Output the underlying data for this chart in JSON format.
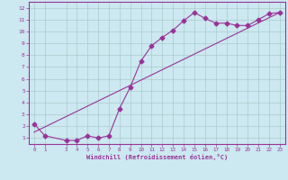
{
  "xlabel": "Windchill (Refroidissement éolien,°C)",
  "bg_color": "#cce8f0",
  "line_color": "#993399",
  "grid_color": "#aacccc",
  "series1_x": [
    0,
    1,
    3,
    4,
    5,
    6,
    7,
    8,
    9,
    10,
    11,
    12,
    13,
    14,
    15,
    16,
    17,
    18,
    19,
    20,
    21,
    22,
    23
  ],
  "series1_y": [
    2.2,
    1.2,
    0.8,
    0.8,
    1.2,
    1.0,
    1.2,
    3.5,
    5.3,
    7.5,
    8.8,
    9.5,
    10.1,
    10.9,
    11.6,
    11.1,
    10.7,
    10.7,
    10.5,
    10.5,
    11.0,
    11.5,
    11.6
  ],
  "series2_x": [
    0,
    23
  ],
  "series2_y": [
    1.5,
    11.6
  ],
  "xmin": -0.5,
  "xmax": 23.5,
  "ymin": 0.5,
  "ymax": 12.5,
  "xticks": [
    0,
    1,
    3,
    4,
    5,
    6,
    7,
    8,
    9,
    10,
    11,
    12,
    13,
    14,
    15,
    16,
    17,
    18,
    19,
    20,
    21,
    22,
    23
  ],
  "yticks": [
    1,
    2,
    3,
    4,
    5,
    6,
    7,
    8,
    9,
    10,
    11,
    12
  ],
  "markersize": 2.5,
  "linewidth": 0.8
}
